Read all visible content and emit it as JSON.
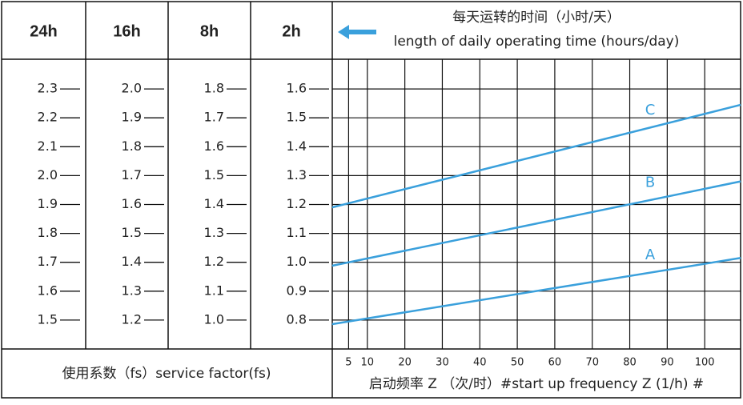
{
  "header": {
    "columns": [
      "24h",
      "16h",
      "8h",
      "2h"
    ],
    "caption_cn": "每天运转的时间（小时/天）",
    "caption_en": "length of daily operating time (hours/day)"
  },
  "scales": [
    {
      "ylim": [
        1.4,
        2.4
      ],
      "ticks": [
        2.3,
        2.2,
        2.1,
        {
          "value": 2,
          "label": "2.0"
        },
        1.9,
        1.8,
        1.7,
        1.6,
        1.5
      ]
    },
    {
      "ylim": [
        1.1,
        2.1
      ],
      "ticks": [
        {
          "value": 2,
          "label": "2.0"
        },
        1.9,
        1.8,
        1.7,
        1.6,
        1.5,
        1.4,
        1.3,
        1.2
      ]
    },
    {
      "ylim": [
        0.9,
        1.9
      ],
      "ticks": [
        1.8,
        1.7,
        1.6,
        1.5,
        1.4,
        1.3,
        1.2,
        1.1,
        {
          "value": 1,
          "label": "1.0"
        }
      ]
    },
    {
      "ylim": [
        0.7,
        1.7
      ],
      "ticks": [
        1.6,
        1.5,
        1.4,
        1.3,
        1.2,
        1.1,
        {
          "value": 1,
          "label": "1.0"
        },
        0.9,
        0.8
      ]
    }
  ],
  "footer": {
    "scale_label": "使用系数（fs）service factor(fs)"
  },
  "chart_data": {
    "type": "line",
    "xlabel": "启动频率 Z （次/时）#start up frequency Z (1/h) #",
    "xlim": [
      0,
      110
    ],
    "xticks": [
      5,
      10,
      20,
      30,
      40,
      50,
      60,
      70,
      80,
      90,
      100
    ],
    "ylim": [
      0.7,
      1.7
    ],
    "yticks": [
      1.6,
      1.5,
      1.4,
      1.3,
      1.2,
      1.1,
      1.0,
      0.9,
      0.8
    ],
    "grid": true,
    "x": [
      0.6,
      109.6
    ],
    "series": [
      {
        "name": "C",
        "color": "#3aa0dc",
        "values": [
          1.19,
          1.545
        ]
      },
      {
        "name": "B",
        "color": "#3aa0dc",
        "values": [
          0.988,
          1.28
        ]
      },
      {
        "name": "A",
        "color": "#3aa0dc",
        "values": [
          0.786,
          1.015
        ]
      }
    ]
  }
}
